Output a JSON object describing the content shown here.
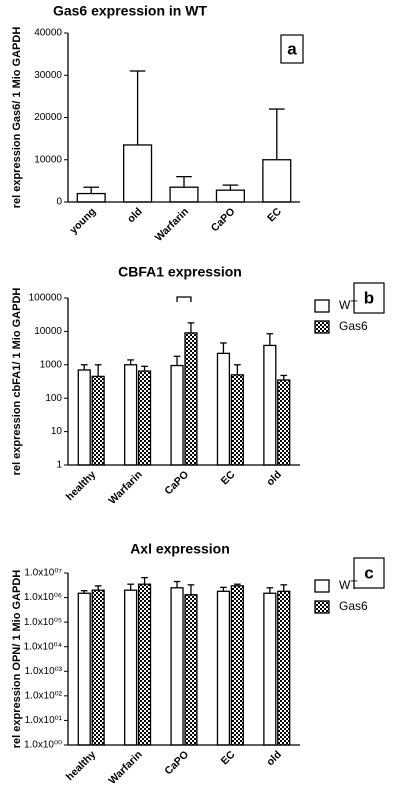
{
  "chart_data": [
    {
      "type": "bar",
      "title": "Gas6 expression in WT",
      "panel_label": "a",
      "y_label": "rel expression Gas6/ 1 Mio GAPDH",
      "categories": [
        "young",
        "old",
        "Warfarin",
        "CaPO",
        "EC"
      ],
      "series": [
        {
          "color": "#ffffff",
          "values": [
            2000,
            13500,
            3500,
            2800,
            10000
          ],
          "errors": [
            1500,
            17500,
            2500,
            1200,
            12000
          ]
        }
      ],
      "ylim": [
        0,
        40000
      ],
      "yticks": [
        0,
        10000,
        20000,
        30000,
        40000
      ],
      "log_scale": false
    },
    {
      "type": "bar",
      "title": "CBFA1 expression",
      "panel_label": "b",
      "y_label": "rel expression cbFA1/ 1 Mio GAPDH",
      "categories": [
        "healthy",
        "Warfarin",
        "CaPO",
        "EC",
        "old"
      ],
      "series": [
        {
          "name": "WT",
          "color": "#ffffff",
          "values": [
            700,
            1000,
            950,
            2200,
            3800
          ],
          "errors": [
            300,
            400,
            850,
            2300,
            4700
          ]
        },
        {
          "name": "Gas6",
          "color": "#000000",
          "pattern": "checkered",
          "values": [
            450,
            650,
            9000,
            500,
            350
          ],
          "errors": [
            550,
            250,
            9000,
            500,
            130
          ]
        }
      ],
      "ylim": [
        1,
        100000
      ],
      "yticks": [
        1,
        10,
        100,
        1000,
        10000,
        100000
      ],
      "log_scale": true
    },
    {
      "type": "bar",
      "title": "Axl expression",
      "panel_label": "c",
      "y_label": "rel expression OPN/ 1 Mio GAPDH",
      "categories": [
        "healthy",
        "Warfarin",
        "CaPO",
        "EC",
        "old"
      ],
      "series": [
        {
          "name": "WT",
          "color": "#ffffff",
          "values": [
            1500000,
            2000000,
            2500000,
            1800000,
            1500000
          ],
          "errors": [
            400000,
            1500000,
            2000000,
            800000,
            1000000
          ]
        },
        {
          "name": "Gas6",
          "color": "#000000",
          "pattern": "checkered",
          "values": [
            2000000,
            3500000,
            1300000,
            3000000,
            1800000
          ],
          "errors": [
            1000000,
            3000000,
            2000000,
            500000,
            1500000
          ]
        }
      ],
      "ylim": [
        1,
        10000000
      ],
      "yticks": [
        {
          "value": 1,
          "label": "1.0x10⁰⁰"
        },
        {
          "value": 10,
          "label": "1.0x10⁰¹"
        },
        {
          "value": 100,
          "label": "1.0x10⁰²"
        },
        {
          "value": 1000,
          "label": "1.0x10⁰³"
        },
        {
          "value": 10000,
          "label": "1.0x10⁰⁴"
        },
        {
          "value": 100000,
          "label": "1.0x10⁰⁵"
        },
        {
          "value": 1000000,
          "label": "1.0x10⁰⁶"
        },
        {
          "value": 10000000,
          "label": "1.0x10⁰⁷"
        }
      ],
      "log_scale": true
    }
  ]
}
